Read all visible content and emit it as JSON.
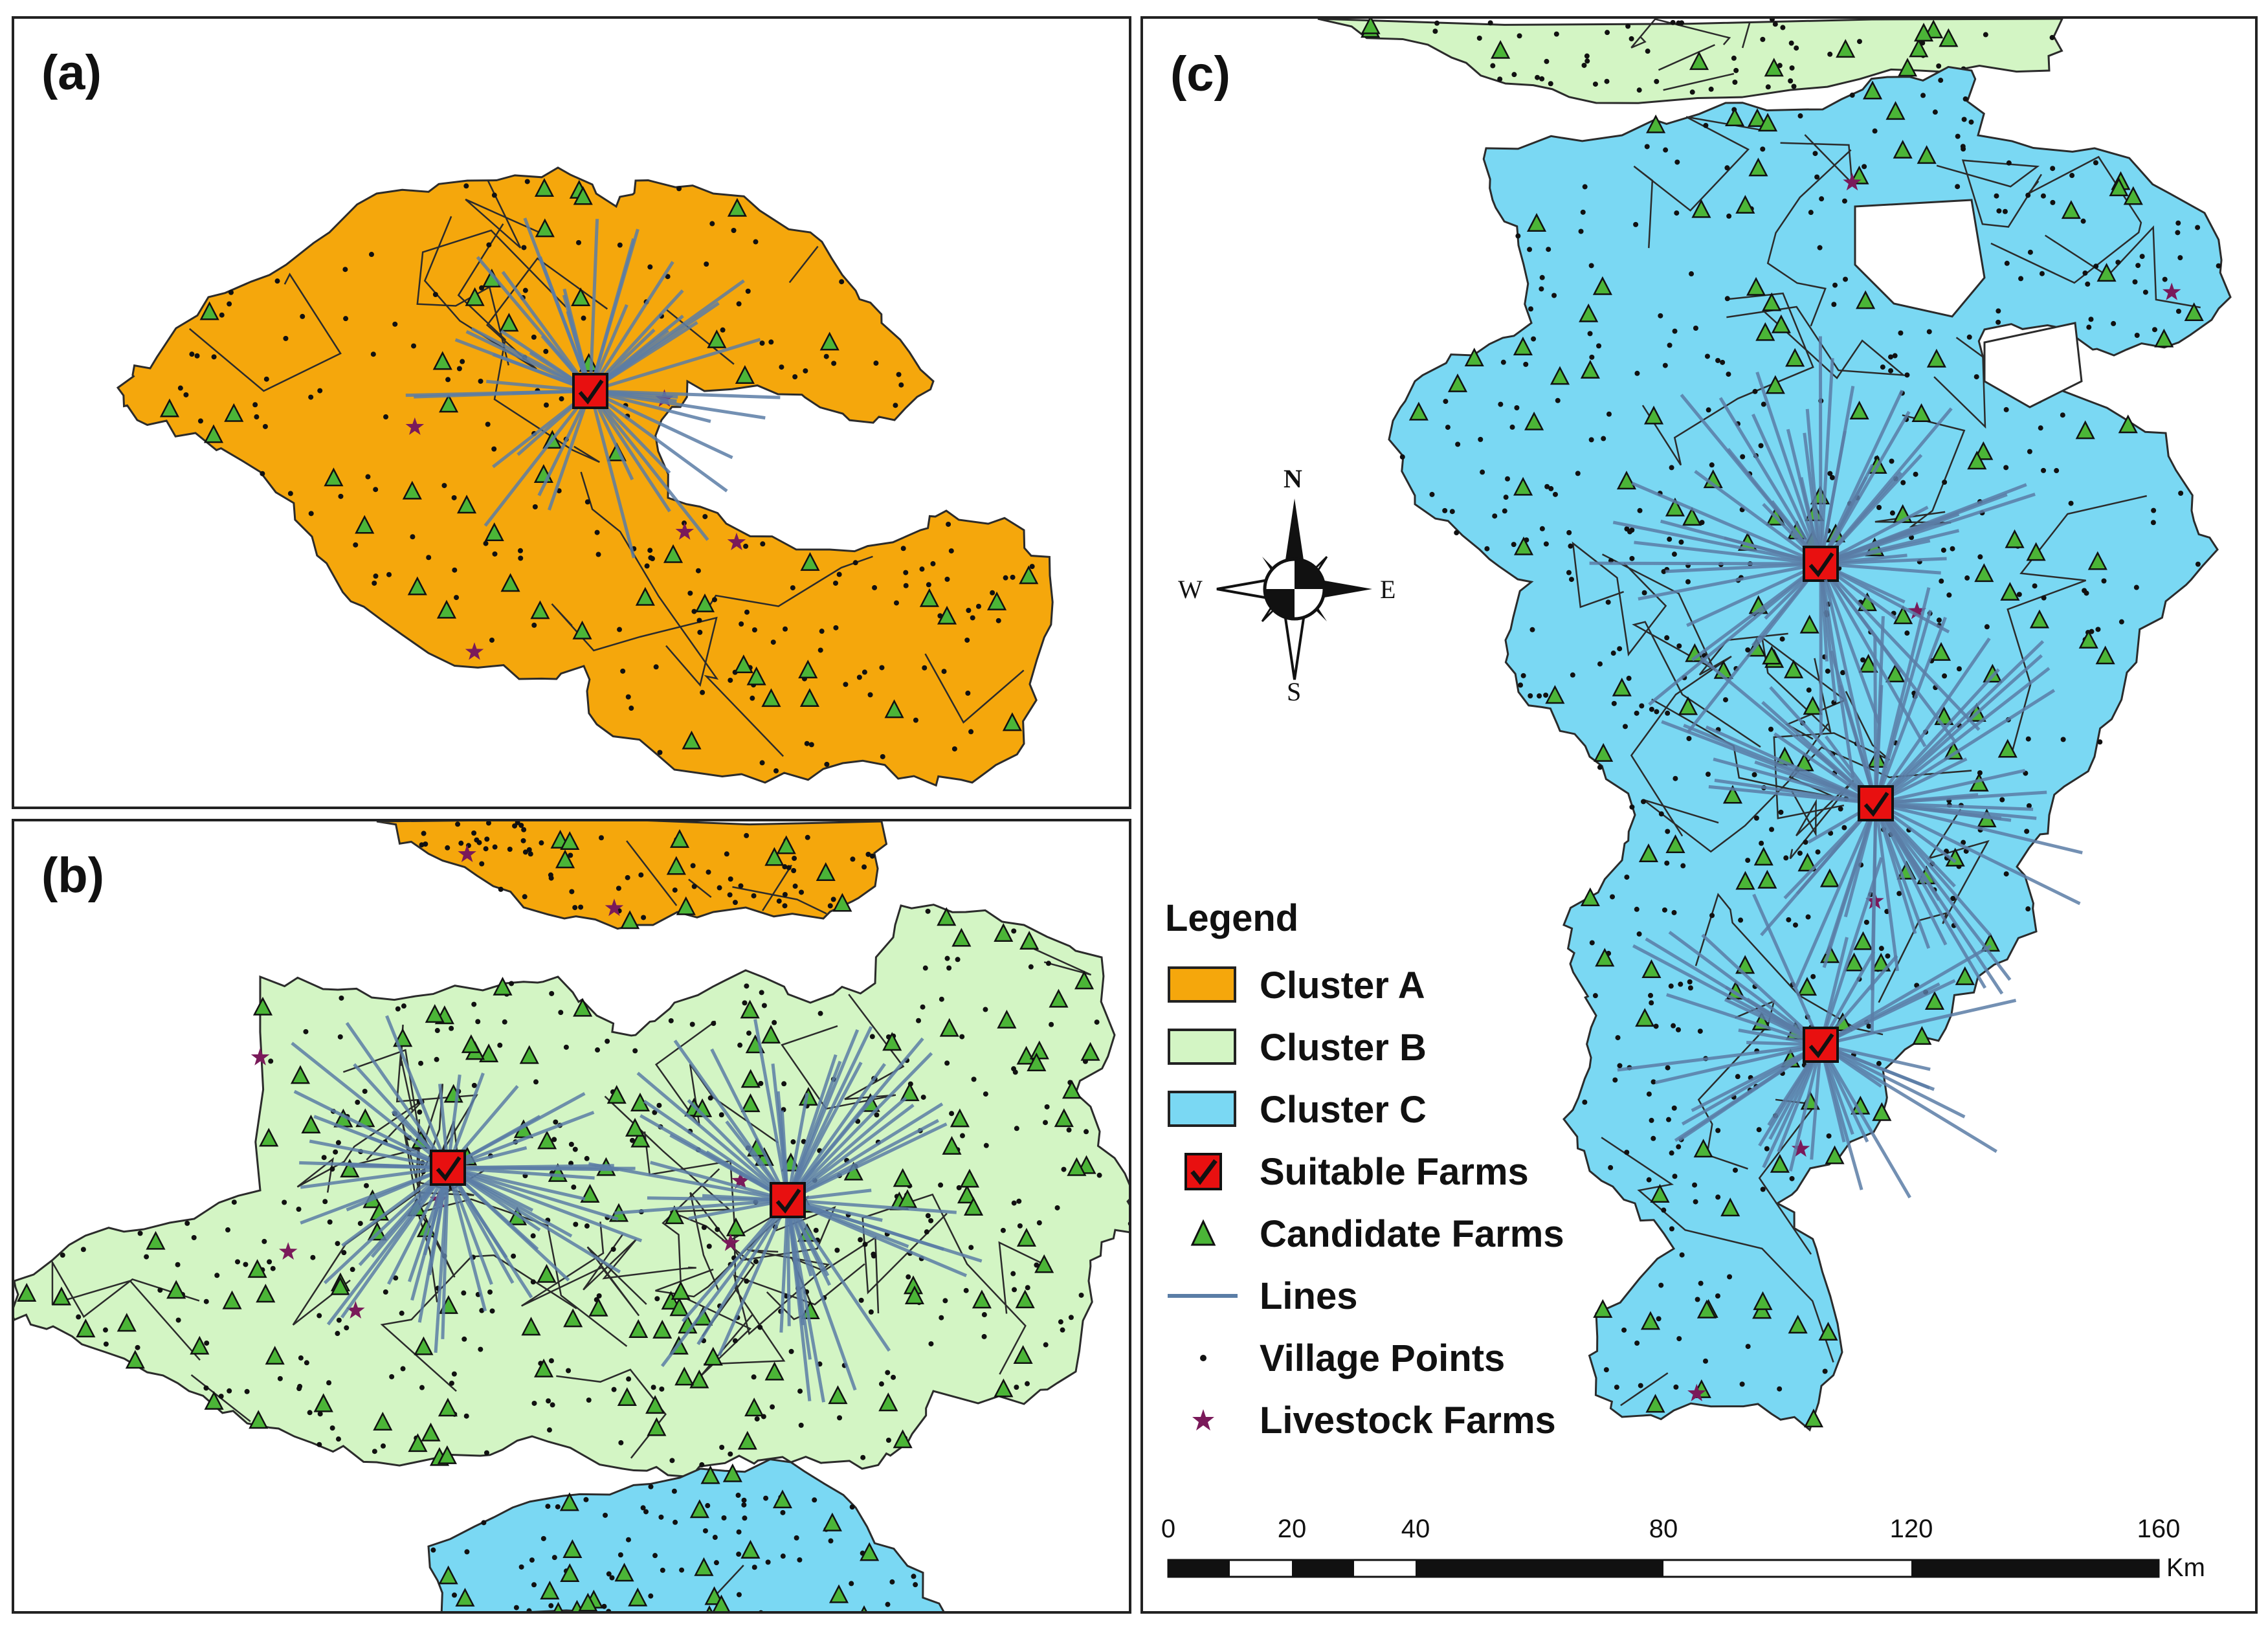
{
  "panels": {
    "a": {
      "label": "(a)"
    },
    "b": {
      "label": "(b)"
    },
    "c": {
      "label": "(c)"
    }
  },
  "colors": {
    "cluster_a": "#F5A70C",
    "cluster_b": "#D3F5C4",
    "cluster_c": "#7AD8F3",
    "suitable_fill": "#E81010",
    "candidate_fill": "#4BB537",
    "lines": "#5A7DA6",
    "village": "#111111",
    "livestock": "#7A1A5A",
    "boundary": "#2B2B2B"
  },
  "compass": {
    "n": "N",
    "s": "S",
    "e": "E",
    "w": "W",
    "icon": "compass-rose-icon"
  },
  "legend": {
    "title": "Legend",
    "items": [
      {
        "label": "Cluster A",
        "symbol": "swatch-orange"
      },
      {
        "label": "Cluster B",
        "symbol": "swatch-light-green"
      },
      {
        "label": "Cluster C",
        "symbol": "swatch-light-blue"
      },
      {
        "label": "Suitable Farms",
        "symbol": "red-check-square-icon"
      },
      {
        "label": "Candidate Farms",
        "symbol": "green-triangle-icon"
      },
      {
        "label": "Lines",
        "symbol": "blue-line-icon"
      },
      {
        "label": "Village Points",
        "symbol": "black-dot-icon"
      },
      {
        "label": "Livestock Farms",
        "symbol": "purple-star-icon"
      }
    ]
  },
  "scale_bar": {
    "ticks": [
      "0",
      "20",
      "40",
      "80",
      "120",
      "160"
    ],
    "unit": "Km"
  }
}
